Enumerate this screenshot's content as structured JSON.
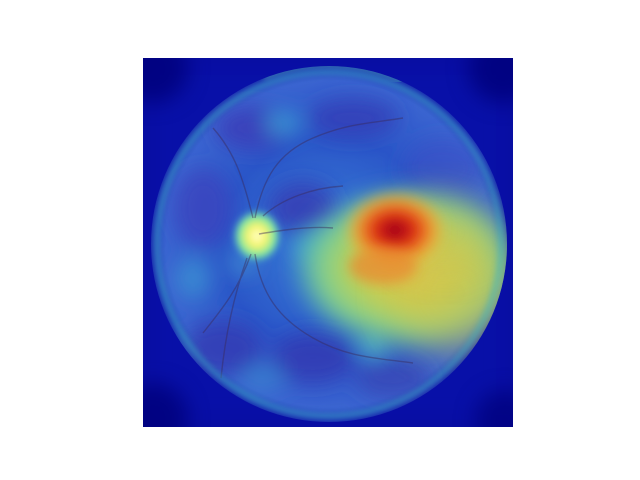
{
  "image": {
    "subject": "fundus-photograph-with-saliency-heatmap-overlay",
    "colormap": "jet",
    "colors": {
      "background": "#ffffff",
      "colormap_low": "#00007f",
      "colormap_mid": "#2fd6c8",
      "colormap_high": "#a5001a",
      "retina_vessels": "#3a2a5a"
    },
    "features": [
      {
        "name": "optic-disc",
        "intensity": 0.72
      },
      {
        "name": "macular-hotspot",
        "intensity": 1.0
      },
      {
        "name": "macular-halo",
        "intensity": 0.62
      },
      {
        "name": "rim-arc-bottom",
        "intensity": 0.6
      },
      {
        "name": "rim-arc-top",
        "intensity": 0.4
      },
      {
        "name": "scattered-patches",
        "intensity": 0.35
      }
    ]
  }
}
